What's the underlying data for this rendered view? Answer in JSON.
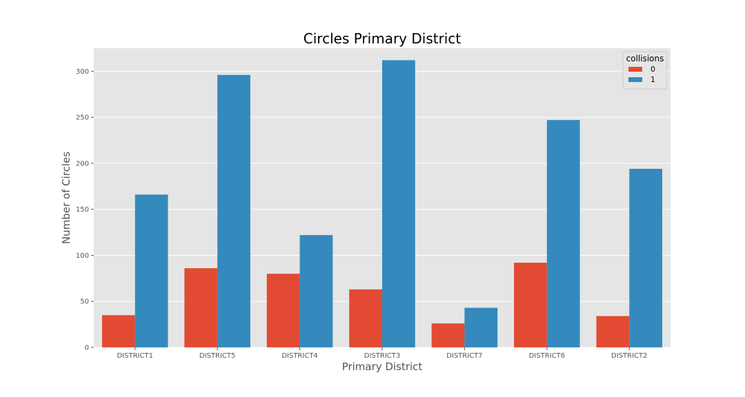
{
  "chart_data": {
    "type": "bar",
    "title": "Circles Primary District",
    "xlabel": "Primary District",
    "ylabel": "Number of Circles",
    "categories": [
      "DISTRICT1",
      "DISTRICT5",
      "DISTRICT4",
      "DISTRICT3",
      "DISTRICT7",
      "DISTRICT6",
      "DISTRICT2"
    ],
    "series": [
      {
        "name": "0",
        "color": "#E24A33",
        "values": [
          35,
          86,
          80,
          63,
          26,
          92,
          34
        ]
      },
      {
        "name": "1",
        "color": "#348ABD",
        "values": [
          166,
          296,
          122,
          312,
          43,
          247,
          194
        ]
      }
    ],
    "ylim": [
      0,
      325
    ],
    "yticks": [
      0,
      50,
      100,
      150,
      200,
      250,
      300
    ],
    "grid": true,
    "legend": {
      "title": "collisions",
      "placement": "top-right"
    },
    "background": "#E5E5E5"
  }
}
